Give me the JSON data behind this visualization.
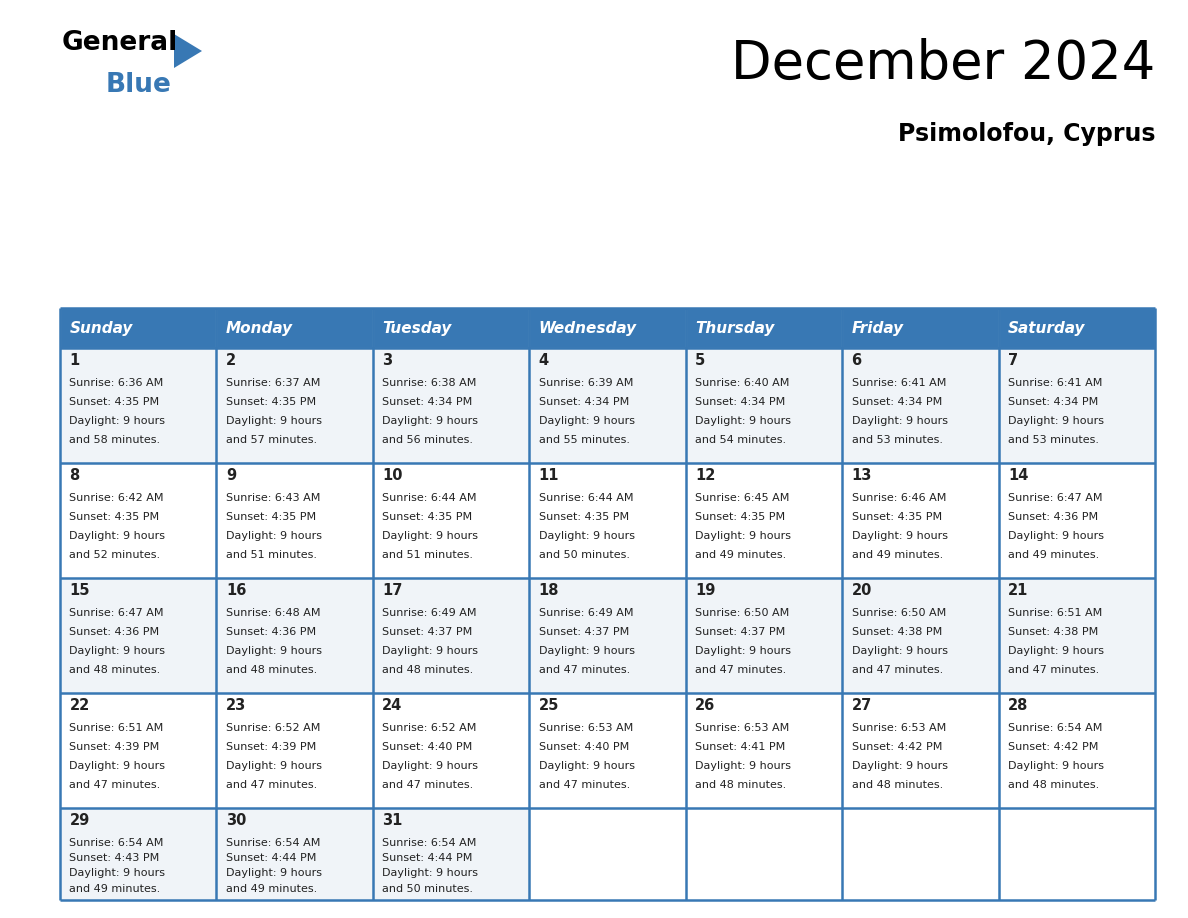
{
  "title": "December 2024",
  "subtitle": "Psimolofou, Cyprus",
  "header_color": "#3878b4",
  "header_text_color": "#ffffff",
  "cell_bg_light": "#f0f4f8",
  "cell_bg_white": "#ffffff",
  "border_color": "#3878b4",
  "text_color": "#222222",
  "day_names": [
    "Sunday",
    "Monday",
    "Tuesday",
    "Wednesday",
    "Thursday",
    "Friday",
    "Saturday"
  ],
  "weeks": [
    [
      {
        "day": 1,
        "sunrise": "6:36 AM",
        "sunset": "4:35 PM",
        "dl1": "9 hours",
        "dl2": "and 58 minutes."
      },
      {
        "day": 2,
        "sunrise": "6:37 AM",
        "sunset": "4:35 PM",
        "dl1": "9 hours",
        "dl2": "and 57 minutes."
      },
      {
        "day": 3,
        "sunrise": "6:38 AM",
        "sunset": "4:34 PM",
        "dl1": "9 hours",
        "dl2": "and 56 minutes."
      },
      {
        "day": 4,
        "sunrise": "6:39 AM",
        "sunset": "4:34 PM",
        "dl1": "9 hours",
        "dl2": "and 55 minutes."
      },
      {
        "day": 5,
        "sunrise": "6:40 AM",
        "sunset": "4:34 PM",
        "dl1": "9 hours",
        "dl2": "and 54 minutes."
      },
      {
        "day": 6,
        "sunrise": "6:41 AM",
        "sunset": "4:34 PM",
        "dl1": "9 hours",
        "dl2": "and 53 minutes."
      },
      {
        "day": 7,
        "sunrise": "6:41 AM",
        "sunset": "4:34 PM",
        "dl1": "9 hours",
        "dl2": "and 53 minutes."
      }
    ],
    [
      {
        "day": 8,
        "sunrise": "6:42 AM",
        "sunset": "4:35 PM",
        "dl1": "9 hours",
        "dl2": "and 52 minutes."
      },
      {
        "day": 9,
        "sunrise": "6:43 AM",
        "sunset": "4:35 PM",
        "dl1": "9 hours",
        "dl2": "and 51 minutes."
      },
      {
        "day": 10,
        "sunrise": "6:44 AM",
        "sunset": "4:35 PM",
        "dl1": "9 hours",
        "dl2": "and 51 minutes."
      },
      {
        "day": 11,
        "sunrise": "6:44 AM",
        "sunset": "4:35 PM",
        "dl1": "9 hours",
        "dl2": "and 50 minutes."
      },
      {
        "day": 12,
        "sunrise": "6:45 AM",
        "sunset": "4:35 PM",
        "dl1": "9 hours",
        "dl2": "and 49 minutes."
      },
      {
        "day": 13,
        "sunrise": "6:46 AM",
        "sunset": "4:35 PM",
        "dl1": "9 hours",
        "dl2": "and 49 minutes."
      },
      {
        "day": 14,
        "sunrise": "6:47 AM",
        "sunset": "4:36 PM",
        "dl1": "9 hours",
        "dl2": "and 49 minutes."
      }
    ],
    [
      {
        "day": 15,
        "sunrise": "6:47 AM",
        "sunset": "4:36 PM",
        "dl1": "9 hours",
        "dl2": "and 48 minutes."
      },
      {
        "day": 16,
        "sunrise": "6:48 AM",
        "sunset": "4:36 PM",
        "dl1": "9 hours",
        "dl2": "and 48 minutes."
      },
      {
        "day": 17,
        "sunrise": "6:49 AM",
        "sunset": "4:37 PM",
        "dl1": "9 hours",
        "dl2": "and 48 minutes."
      },
      {
        "day": 18,
        "sunrise": "6:49 AM",
        "sunset": "4:37 PM",
        "dl1": "9 hours",
        "dl2": "and 47 minutes."
      },
      {
        "day": 19,
        "sunrise": "6:50 AM",
        "sunset": "4:37 PM",
        "dl1": "9 hours",
        "dl2": "and 47 minutes."
      },
      {
        "day": 20,
        "sunrise": "6:50 AM",
        "sunset": "4:38 PM",
        "dl1": "9 hours",
        "dl2": "and 47 minutes."
      },
      {
        "day": 21,
        "sunrise": "6:51 AM",
        "sunset": "4:38 PM",
        "dl1": "9 hours",
        "dl2": "and 47 minutes."
      }
    ],
    [
      {
        "day": 22,
        "sunrise": "6:51 AM",
        "sunset": "4:39 PM",
        "dl1": "9 hours",
        "dl2": "and 47 minutes."
      },
      {
        "day": 23,
        "sunrise": "6:52 AM",
        "sunset": "4:39 PM",
        "dl1": "9 hours",
        "dl2": "and 47 minutes."
      },
      {
        "day": 24,
        "sunrise": "6:52 AM",
        "sunset": "4:40 PM",
        "dl1": "9 hours",
        "dl2": "and 47 minutes."
      },
      {
        "day": 25,
        "sunrise": "6:53 AM",
        "sunset": "4:40 PM",
        "dl1": "9 hours",
        "dl2": "and 47 minutes."
      },
      {
        "day": 26,
        "sunrise": "6:53 AM",
        "sunset": "4:41 PM",
        "dl1": "9 hours",
        "dl2": "and 48 minutes."
      },
      {
        "day": 27,
        "sunrise": "6:53 AM",
        "sunset": "4:42 PM",
        "dl1": "9 hours",
        "dl2": "and 48 minutes."
      },
      {
        "day": 28,
        "sunrise": "6:54 AM",
        "sunset": "4:42 PM",
        "dl1": "9 hours",
        "dl2": "and 48 minutes."
      }
    ],
    [
      {
        "day": 29,
        "sunrise": "6:54 AM",
        "sunset": "4:43 PM",
        "dl1": "9 hours",
        "dl2": "and 49 minutes."
      },
      {
        "day": 30,
        "sunrise": "6:54 AM",
        "sunset": "4:44 PM",
        "dl1": "9 hours",
        "dl2": "and 49 minutes."
      },
      {
        "day": 31,
        "sunrise": "6:54 AM",
        "sunset": "4:44 PM",
        "dl1": "9 hours",
        "dl2": "and 50 minutes."
      },
      null,
      null,
      null,
      null
    ]
  ]
}
